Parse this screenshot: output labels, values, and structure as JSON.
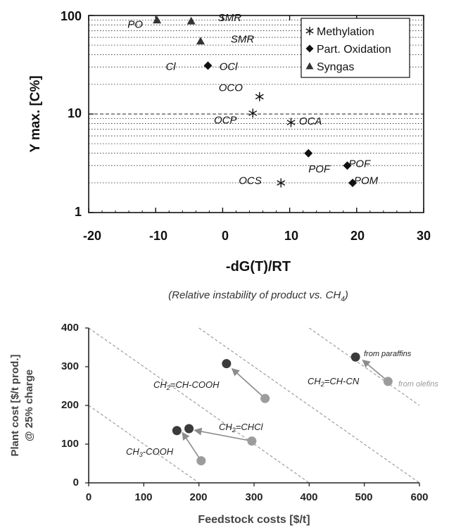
{
  "chart_data": [
    {
      "type": "scatter",
      "xlabel": "-dG(T)/RT",
      "ylabel": "Y max. [C%]",
      "subtitle": "(Relative instability of product vs. CH",
      "subtitle_sub": "4",
      "subtitle_end": ")",
      "xlim": [
        -20,
        30
      ],
      "ylim": [
        1,
        100
      ],
      "yscale": "log",
      "x_ticks": [
        "-20",
        "-10",
        "0",
        "10",
        "20",
        "30"
      ],
      "y_ticks": [
        "1",
        "10",
        "100"
      ],
      "grid": "horizontal dotted",
      "legend_position": "top-right",
      "series": [
        {
          "name": "Methylation",
          "marker": "asterisk",
          "points": [
            {
              "x": 5.5,
              "y": 15
            },
            {
              "x": 4.5,
              "y": 10.2
            },
            {
              "x": 10.2,
              "y": 8.2
            },
            {
              "x": 8.7,
              "y": 2
            }
          ]
        },
        {
          "name": "Part. Oxidation",
          "marker": "diamond",
          "points": [
            {
              "x": -2.2,
              "y": 31
            },
            {
              "x": 12.8,
              "y": 4
            },
            {
              "x": 18.6,
              "y": 3
            },
            {
              "x": 19.4,
              "y": 2
            }
          ]
        },
        {
          "name": "Syngas",
          "marker": "triangle",
          "points": [
            {
              "x": -9.8,
              "y": 90
            },
            {
              "x": -4.7,
              "y": 88
            },
            {
              "x": -3.3,
              "y": 55
            }
          ]
        }
      ],
      "annotations": [
        {
          "text": "PO",
          "x": -14.2,
          "y": 75
        },
        {
          "text": "SMR",
          "x": -0.7,
          "y": 88
        },
        {
          "text": "SMR",
          "x": 1.2,
          "y": 53
        },
        {
          "text": "Cl",
          "x": -8.5,
          "y": 28
        },
        {
          "text": "OCl",
          "x": -0.5,
          "y": 28
        },
        {
          "text": "OCO",
          "x": -0.6,
          "y": 17
        },
        {
          "text": "OCP",
          "x": -1.3,
          "y": 8
        },
        {
          "text": "OCA",
          "x": 11.4,
          "y": 7.8
        },
        {
          "text": "POF",
          "x": 12.8,
          "y": 2.55
        },
        {
          "text": "POF",
          "x": 18.8,
          "y": 2.9
        },
        {
          "text": "OCS",
          "x": 2.4,
          "y": 1.95
        },
        {
          "text": "POM",
          "x": 19.6,
          "y": 1.95
        }
      ]
    },
    {
      "type": "scatter",
      "xlabel": "Feedstock costs [$/t]",
      "ylabel_line1": "Plant cost [$/t prod.]",
      "ylabel_line2": "@ 25% charge",
      "xlim": [
        0,
        600
      ],
      "ylim": [
        0,
        400
      ],
      "x_ticks": [
        "0",
        "100",
        "200",
        "300",
        "400",
        "500",
        "600"
      ],
      "y_ticks": [
        "0",
        "100",
        "200",
        "300",
        "400"
      ],
      "colors": {
        "dark": "#3b3b3b",
        "light": "#9c9c9c",
        "arrow": "#8c8c8c",
        "iso": "#8c8c8c"
      },
      "iso_lines_total_cost": [
        200,
        400,
        600,
        800
      ],
      "arrows": [
        {
          "from": [
            204,
            57
          ],
          "to": [
            170,
            130
          ]
        },
        {
          "from": [
            296,
            108
          ],
          "to": [
            192,
            136
          ]
        },
        {
          "from": [
            320,
            218
          ],
          "to": [
            260,
            295
          ]
        },
        {
          "from": [
            543,
            262
          ],
          "to": [
            497,
            317
          ]
        }
      ],
      "points_dark": [
        {
          "x": 160,
          "y": 135
        },
        {
          "x": 182,
          "y": 140
        },
        {
          "x": 250,
          "y": 308
        },
        {
          "x": 484,
          "y": 325
        }
      ],
      "points_light": [
        {
          "x": 204,
          "y": 57
        },
        {
          "x": 296,
          "y": 108
        },
        {
          "x": 320,
          "y": 218
        },
        {
          "x": 543,
          "y": 262
        }
      ],
      "labels": [
        {
          "text": "CH3-COOH",
          "x": 86,
          "y": 74
        },
        {
          "text": "CH2=CHCl",
          "x": 236,
          "y": 125
        },
        {
          "text": "CH2=CH-COOH",
          "x": 118,
          "y": 247
        },
        {
          "text": "CH2=CH-CN",
          "x": 401,
          "y": 247
        },
        {
          "text": "from paraffins",
          "x": 494,
          "y": 331
        },
        {
          "text": "from olefins",
          "x": 557,
          "y": 258
        }
      ]
    }
  ]
}
